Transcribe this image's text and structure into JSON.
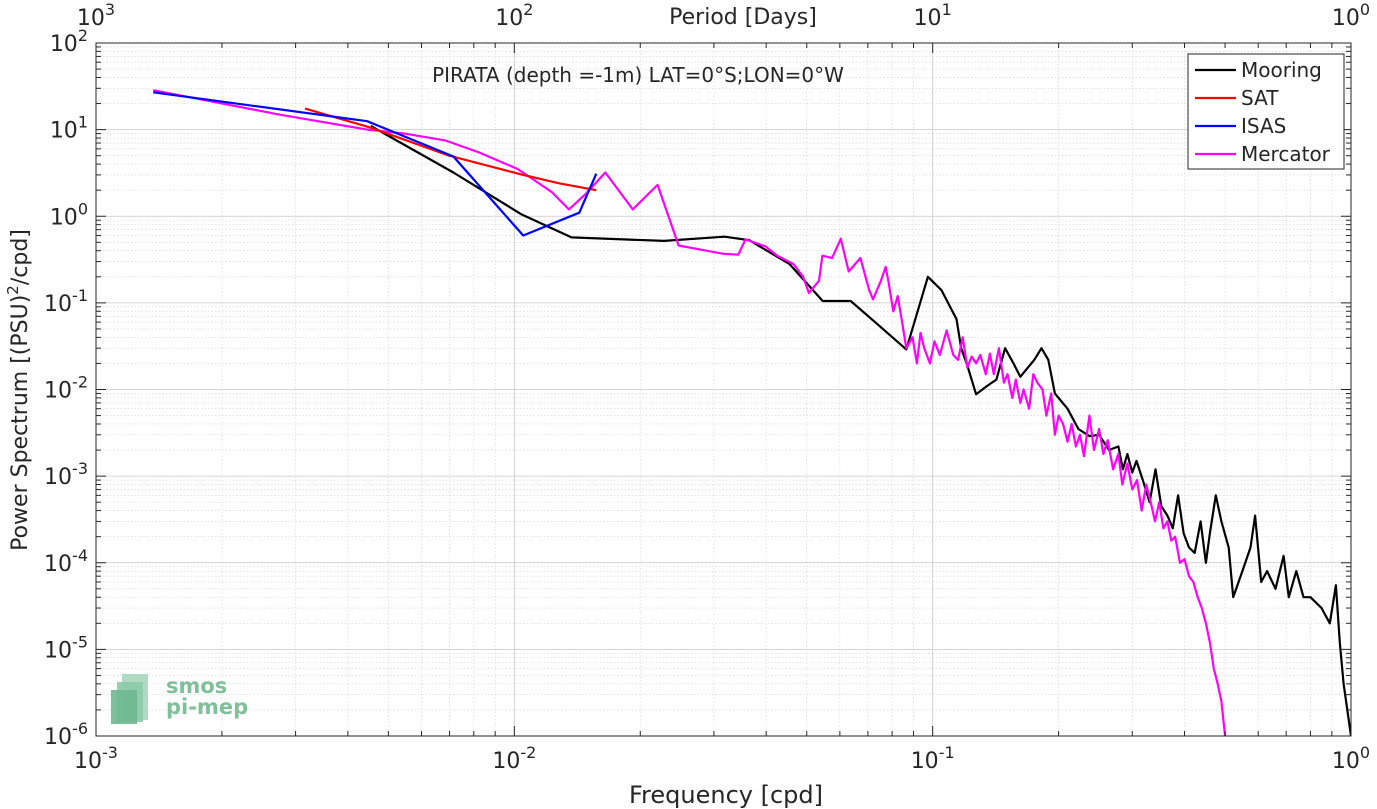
{
  "chart_data": {
    "type": "line",
    "title": "PIRATA (depth =-1m) LAT=0°S;LON=0°W",
    "xlabel": "Frequency [cpd]",
    "ylabel_main": "Power Spectrum [(PSU)",
    "ylabel_sup": "2",
    "ylabel_tail": "/cpd]",
    "top_xlabel": "Period [Days]",
    "x_scale": "log",
    "y_scale": "log",
    "xlim": [
      0.001,
      1
    ],
    "ylim": [
      1e-06,
      100
    ],
    "grid": true,
    "minor_grid": true,
    "legend_position": "top-right",
    "x_ticks": [
      {
        "value": 0.001,
        "base": "10",
        "exp": "-3"
      },
      {
        "value": 0.01,
        "base": "10",
        "exp": "-2"
      },
      {
        "value": 0.1,
        "base": "10",
        "exp": "-1"
      },
      {
        "value": 1,
        "base": "10",
        "exp": "0"
      }
    ],
    "y_ticks": [
      {
        "value": 100,
        "base": "10",
        "exp": "2"
      },
      {
        "value": 10,
        "base": "10",
        "exp": "1"
      },
      {
        "value": 1,
        "base": "10",
        "exp": "0"
      },
      {
        "value": 0.1,
        "base": "10",
        "exp": "-1"
      },
      {
        "value": 0.01,
        "base": "10",
        "exp": "-2"
      },
      {
        "value": 0.001,
        "base": "10",
        "exp": "-3"
      },
      {
        "value": 0.0001,
        "base": "10",
        "exp": "-4"
      },
      {
        "value": 1e-05,
        "base": "10",
        "exp": "-5"
      },
      {
        "value": 1e-06,
        "base": "10",
        "exp": "-6"
      }
    ],
    "top_ticks": [
      {
        "value": 0.001,
        "base": "10",
        "exp": "3"
      },
      {
        "value": 0.01,
        "base": "10",
        "exp": "2"
      },
      {
        "value": 0.1,
        "base": "10",
        "exp": "1"
      },
      {
        "value": 1,
        "base": "10",
        "exp": "0"
      }
    ],
    "series": [
      {
        "name": "Mooring",
        "color": "#000000",
        "points": [
          [
            0.00454,
            11.0
          ],
          [
            0.00715,
            3.2
          ],
          [
            0.0104,
            1.05
          ],
          [
            0.0137,
            0.57
          ],
          [
            0.0228,
            0.52
          ],
          [
            0.0318,
            0.58
          ],
          [
            0.0364,
            0.53
          ],
          [
            0.0455,
            0.28
          ],
          [
            0.0546,
            0.105
          ],
          [
            0.0637,
            0.105
          ],
          [
            0.0728,
            0.06
          ],
          [
            0.0865,
            0.029
          ],
          [
            0.0974,
            0.2
          ],
          [
            0.105,
            0.14
          ],
          [
            0.114,
            0.065
          ],
          [
            0.117,
            0.03
          ],
          [
            0.121,
            0.019
          ],
          [
            0.127,
            0.0088
          ],
          [
            0.135,
            0.011
          ],
          [
            0.142,
            0.013
          ],
          [
            0.149,
            0.03
          ],
          [
            0.156,
            0.02
          ],
          [
            0.162,
            0.014
          ],
          [
            0.175,
            0.022
          ],
          [
            0.182,
            0.03
          ],
          [
            0.189,
            0.022
          ],
          [
            0.196,
            0.009
          ],
          [
            0.21,
            0.006
          ],
          [
            0.223,
            0.0035
          ],
          [
            0.237,
            0.0029
          ],
          [
            0.25,
            0.003
          ],
          [
            0.264,
            0.002
          ],
          [
            0.278,
            0.0022
          ],
          [
            0.285,
            0.0012
          ],
          [
            0.292,
            0.0018
          ],
          [
            0.3,
            0.0011
          ],
          [
            0.307,
            0.0015
          ],
          [
            0.318,
            0.0009
          ],
          [
            0.33,
            0.0005
          ],
          [
            0.341,
            0.0012
          ],
          [
            0.352,
            0.00045
          ],
          [
            0.364,
            0.00035
          ],
          [
            0.375,
            0.00025
          ],
          [
            0.386,
            0.0006
          ],
          [
            0.398,
            0.00022
          ],
          [
            0.41,
            0.00015
          ],
          [
            0.423,
            0.00013
          ],
          [
            0.437,
            0.0003
          ],
          [
            0.45,
            0.0001
          ],
          [
            0.46,
            0.00022
          ],
          [
            0.475,
            0.0006
          ],
          [
            0.49,
            0.0003
          ],
          [
            0.51,
            0.00015
          ],
          [
            0.523,
            4e-05
          ],
          [
            0.55,
            8e-05
          ],
          [
            0.575,
            0.00015
          ],
          [
            0.59,
            0.00035
          ],
          [
            0.61,
            6e-05
          ],
          [
            0.63,
            8e-05
          ],
          [
            0.66,
            5e-05
          ],
          [
            0.69,
            0.00012
          ],
          [
            0.71,
            4e-05
          ],
          [
            0.74,
            8e-05
          ],
          [
            0.77,
            4e-05
          ],
          [
            0.8,
            4e-05
          ],
          [
            0.85,
            3e-05
          ],
          [
            0.89,
            2e-05
          ],
          [
            0.92,
            5.5e-05
          ],
          [
            0.94,
            1.2e-05
          ],
          [
            0.96,
            4e-06
          ],
          [
            0.98,
            2e-06
          ],
          [
            1.0,
            1e-06
          ]
        ]
      },
      {
        "name": "SAT",
        "color": "#ff0000",
        "points": [
          [
            0.00316,
            17.5
          ],
          [
            0.00455,
            10.5
          ],
          [
            0.00699,
            5.0
          ],
          [
            0.0105,
            3.0
          ],
          [
            0.0128,
            2.4
          ],
          [
            0.0157,
            2.0
          ]
        ]
      },
      {
        "name": "ISAS",
        "color": "#0000ff",
        "points": [
          [
            0.00137,
            27.0
          ],
          [
            0.00445,
            12.5
          ],
          [
            0.00715,
            4.9
          ],
          [
            0.0105,
            0.6
          ],
          [
            0.0143,
            1.1
          ],
          [
            0.0157,
            3.1
          ]
        ]
      },
      {
        "name": "Mercator",
        "color": "#ff00ff",
        "points": [
          [
            0.00137,
            28.5
          ],
          [
            0.00273,
            15.0
          ],
          [
            0.00445,
            10.0
          ],
          [
            0.00547,
            9.0
          ],
          [
            0.00683,
            7.5
          ],
          [
            0.0082,
            5.5
          ],
          [
            0.0102,
            3.5
          ],
          [
            0.0123,
            1.9
          ],
          [
            0.0135,
            1.2
          ],
          [
            0.0148,
            1.8
          ],
          [
            0.0165,
            3.2
          ],
          [
            0.0192,
            1.2
          ],
          [
            0.022,
            2.3
          ],
          [
            0.0247,
            0.46
          ],
          [
            0.0288,
            0.4
          ],
          [
            0.0315,
            0.37
          ],
          [
            0.0343,
            0.36
          ],
          [
            0.0357,
            0.54
          ],
          [
            0.0398,
            0.45
          ],
          [
            0.0425,
            0.35
          ],
          [
            0.0465,
            0.28
          ],
          [
            0.049,
            0.2
          ],
          [
            0.0506,
            0.13
          ],
          [
            0.0535,
            0.18
          ],
          [
            0.0545,
            0.35
          ],
          [
            0.0575,
            0.33
          ],
          [
            0.0603,
            0.55
          ],
          [
            0.063,
            0.23
          ],
          [
            0.0672,
            0.33
          ],
          [
            0.0705,
            0.14
          ],
          [
            0.072,
            0.11
          ],
          [
            0.0752,
            0.18
          ],
          [
            0.0772,
            0.26
          ],
          [
            0.0785,
            0.17
          ],
          [
            0.0805,
            0.08
          ],
          [
            0.0825,
            0.12
          ],
          [
            0.0845,
            0.06
          ],
          [
            0.0865,
            0.03
          ],
          [
            0.0895,
            0.04
          ],
          [
            0.0917,
            0.02
          ],
          [
            0.0935,
            0.045
          ],
          [
            0.0955,
            0.03
          ],
          [
            0.0985,
            0.02
          ],
          [
            0.101,
            0.036
          ],
          [
            0.104,
            0.025
          ],
          [
            0.108,
            0.048
          ],
          [
            0.112,
            0.025
          ],
          [
            0.115,
            0.022
          ],
          [
            0.118,
            0.04
          ],
          [
            0.121,
            0.018
          ],
          [
            0.124,
            0.024
          ],
          [
            0.127,
            0.02
          ],
          [
            0.13,
            0.025
          ],
          [
            0.134,
            0.015
          ],
          [
            0.137,
            0.026
          ],
          [
            0.14,
            0.015
          ],
          [
            0.144,
            0.03
          ],
          [
            0.148,
            0.012
          ],
          [
            0.151,
            0.015
          ],
          [
            0.155,
            0.008
          ],
          [
            0.158,
            0.013
          ],
          [
            0.162,
            0.007
          ],
          [
            0.165,
            0.01
          ],
          [
            0.17,
            0.006
          ],
          [
            0.174,
            0.015
          ],
          [
            0.178,
            0.012
          ],
          [
            0.183,
            0.01
          ],
          [
            0.187,
            0.005
          ],
          [
            0.192,
            0.009
          ],
          [
            0.196,
            0.003
          ],
          [
            0.2,
            0.005
          ],
          [
            0.205,
            0.004
          ],
          [
            0.21,
            0.0025
          ],
          [
            0.215,
            0.004
          ],
          [
            0.22,
            0.0022
          ],
          [
            0.225,
            0.003
          ],
          [
            0.23,
            0.0017
          ],
          [
            0.237,
            0.005
          ],
          [
            0.243,
            0.002
          ],
          [
            0.25,
            0.0035
          ],
          [
            0.256,
            0.0018
          ],
          [
            0.262,
            0.0026
          ],
          [
            0.27,
            0.0012
          ],
          [
            0.278,
            0.0018
          ],
          [
            0.284,
            0.0008
          ],
          [
            0.292,
            0.0014
          ],
          [
            0.3,
            0.0007
          ],
          [
            0.308,
            0.0009
          ],
          [
            0.316,
            0.0004
          ],
          [
            0.324,
            0.0008
          ],
          [
            0.332,
            0.0005
          ],
          [
            0.34,
            0.0003
          ],
          [
            0.348,
            0.0005
          ],
          [
            0.356,
            0.00025
          ],
          [
            0.364,
            0.0003
          ],
          [
            0.372,
            0.00018
          ],
          [
            0.38,
            0.0002
          ],
          [
            0.39,
            0.0001
          ],
          [
            0.4,
            0.00011
          ],
          [
            0.41,
            7e-05
          ],
          [
            0.42,
            6e-05
          ],
          [
            0.43,
            4e-05
          ],
          [
            0.44,
            3e-05
          ],
          [
            0.45,
            2e-05
          ],
          [
            0.46,
            1.2e-05
          ],
          [
            0.47,
            6e-06
          ],
          [
            0.48,
            4e-06
          ],
          [
            0.49,
            2.5e-06
          ],
          [
            0.5,
            1e-06
          ]
        ]
      }
    ]
  },
  "logo": {
    "line1": "smos",
    "line2": "pi-mep",
    "color": "#7fbf9a"
  }
}
